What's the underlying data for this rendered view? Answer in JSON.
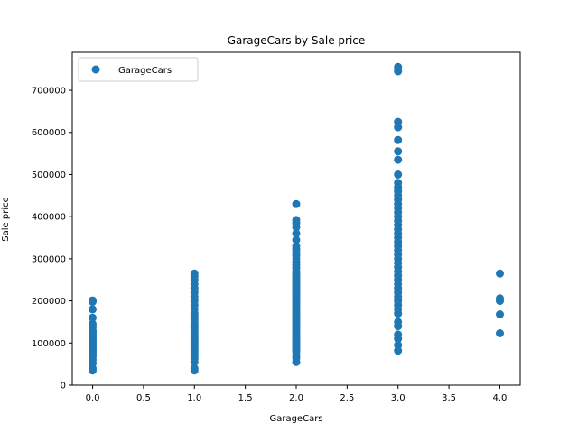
{
  "chart_data": {
    "type": "scatter",
    "title": "GarageCars by Sale price",
    "xlabel": "GarageCars",
    "ylabel": "Sale price",
    "xlim": [
      -0.2,
      4.2
    ],
    "ylim": [
      0,
      790000
    ],
    "x_ticks": [
      0.0,
      0.5,
      1.0,
      1.5,
      2.0,
      2.5,
      3.0,
      3.5,
      4.0
    ],
    "x_tick_labels": [
      "0.0",
      "0.5",
      "1.0",
      "1.5",
      "2.0",
      "2.5",
      "3.0",
      "3.5",
      "4.0"
    ],
    "y_ticks": [
      0,
      100000,
      200000,
      300000,
      400000,
      500000,
      600000,
      700000
    ],
    "y_tick_labels": [
      "0",
      "100000",
      "200000",
      "300000",
      "400000",
      "500000",
      "600000",
      "700000"
    ],
    "grid": false,
    "legend_position": "top-left",
    "color": "#1f77b4",
    "series": [
      {
        "name": "GarageCars",
        "points": [
          {
            "x": 0,
            "y": 35000
          },
          {
            "x": 0,
            "y": 40000
          },
          {
            "x": 0,
            "y": 52000
          },
          {
            "x": 0,
            "y": 60000
          },
          {
            "x": 0,
            "y": 68000
          },
          {
            "x": 0,
            "y": 75000
          },
          {
            "x": 0,
            "y": 80000
          },
          {
            "x": 0,
            "y": 85000
          },
          {
            "x": 0,
            "y": 90000
          },
          {
            "x": 0,
            "y": 95000
          },
          {
            "x": 0,
            "y": 100000
          },
          {
            "x": 0,
            "y": 105000
          },
          {
            "x": 0,
            "y": 110000
          },
          {
            "x": 0,
            "y": 115000
          },
          {
            "x": 0,
            "y": 120000
          },
          {
            "x": 0,
            "y": 125000
          },
          {
            "x": 0,
            "y": 130000
          },
          {
            "x": 0,
            "y": 138000
          },
          {
            "x": 0,
            "y": 145000
          },
          {
            "x": 0,
            "y": 160000
          },
          {
            "x": 0,
            "y": 180000
          },
          {
            "x": 0,
            "y": 198000
          },
          {
            "x": 0,
            "y": 201000
          },
          {
            "x": 1,
            "y": 35000
          },
          {
            "x": 1,
            "y": 40000
          },
          {
            "x": 1,
            "y": 55000
          },
          {
            "x": 1,
            "y": 62000
          },
          {
            "x": 1,
            "y": 68000
          },
          {
            "x": 1,
            "y": 75000
          },
          {
            "x": 1,
            "y": 80000
          },
          {
            "x": 1,
            "y": 85000
          },
          {
            "x": 1,
            "y": 90000
          },
          {
            "x": 1,
            "y": 95000
          },
          {
            "x": 1,
            "y": 100000
          },
          {
            "x": 1,
            "y": 105000
          },
          {
            "x": 1,
            "y": 110000
          },
          {
            "x": 1,
            "y": 115000
          },
          {
            "x": 1,
            "y": 120000
          },
          {
            "x": 1,
            "y": 125000
          },
          {
            "x": 1,
            "y": 130000
          },
          {
            "x": 1,
            "y": 135000
          },
          {
            "x": 1,
            "y": 140000
          },
          {
            "x": 1,
            "y": 145000
          },
          {
            "x": 1,
            "y": 150000
          },
          {
            "x": 1,
            "y": 155000
          },
          {
            "x": 1,
            "y": 160000
          },
          {
            "x": 1,
            "y": 165000
          },
          {
            "x": 1,
            "y": 170000
          },
          {
            "x": 1,
            "y": 180000
          },
          {
            "x": 1,
            "y": 190000
          },
          {
            "x": 1,
            "y": 200000
          },
          {
            "x": 1,
            "y": 210000
          },
          {
            "x": 1,
            "y": 220000
          },
          {
            "x": 1,
            "y": 230000
          },
          {
            "x": 1,
            "y": 240000
          },
          {
            "x": 1,
            "y": 250000
          },
          {
            "x": 1,
            "y": 258000
          },
          {
            "x": 1,
            "y": 265000
          },
          {
            "x": 2,
            "y": 55000
          },
          {
            "x": 2,
            "y": 65000
          },
          {
            "x": 2,
            "y": 72000
          },
          {
            "x": 2,
            "y": 80000
          },
          {
            "x": 2,
            "y": 85000
          },
          {
            "x": 2,
            "y": 90000
          },
          {
            "x": 2,
            "y": 95000
          },
          {
            "x": 2,
            "y": 100000
          },
          {
            "x": 2,
            "y": 105000
          },
          {
            "x": 2,
            "y": 110000
          },
          {
            "x": 2,
            "y": 115000
          },
          {
            "x": 2,
            "y": 120000
          },
          {
            "x": 2,
            "y": 125000
          },
          {
            "x": 2,
            "y": 130000
          },
          {
            "x": 2,
            "y": 135000
          },
          {
            "x": 2,
            "y": 140000
          },
          {
            "x": 2,
            "y": 145000
          },
          {
            "x": 2,
            "y": 150000
          },
          {
            "x": 2,
            "y": 155000
          },
          {
            "x": 2,
            "y": 160000
          },
          {
            "x": 2,
            "y": 165000
          },
          {
            "x": 2,
            "y": 170000
          },
          {
            "x": 2,
            "y": 175000
          },
          {
            "x": 2,
            "y": 180000
          },
          {
            "x": 2,
            "y": 185000
          },
          {
            "x": 2,
            "y": 190000
          },
          {
            "x": 2,
            "y": 195000
          },
          {
            "x": 2,
            "y": 200000
          },
          {
            "x": 2,
            "y": 205000
          },
          {
            "x": 2,
            "y": 210000
          },
          {
            "x": 2,
            "y": 215000
          },
          {
            "x": 2,
            "y": 220000
          },
          {
            "x": 2,
            "y": 225000
          },
          {
            "x": 2,
            "y": 230000
          },
          {
            "x": 2,
            "y": 235000
          },
          {
            "x": 2,
            "y": 240000
          },
          {
            "x": 2,
            "y": 245000
          },
          {
            "x": 2,
            "y": 250000
          },
          {
            "x": 2,
            "y": 255000
          },
          {
            "x": 2,
            "y": 260000
          },
          {
            "x": 2,
            "y": 265000
          },
          {
            "x": 2,
            "y": 270000
          },
          {
            "x": 2,
            "y": 278000
          },
          {
            "x": 2,
            "y": 285000
          },
          {
            "x": 2,
            "y": 292000
          },
          {
            "x": 2,
            "y": 300000
          },
          {
            "x": 2,
            "y": 308000
          },
          {
            "x": 2,
            "y": 315000
          },
          {
            "x": 2,
            "y": 322000
          },
          {
            "x": 2,
            "y": 330000
          },
          {
            "x": 2,
            "y": 345000
          },
          {
            "x": 2,
            "y": 360000
          },
          {
            "x": 2,
            "y": 375000
          },
          {
            "x": 2,
            "y": 385000
          },
          {
            "x": 2,
            "y": 392000
          },
          {
            "x": 2,
            "y": 430000
          },
          {
            "x": 3,
            "y": 82000
          },
          {
            "x": 3,
            "y": 95000
          },
          {
            "x": 3,
            "y": 110000
          },
          {
            "x": 3,
            "y": 120000
          },
          {
            "x": 3,
            "y": 140000
          },
          {
            "x": 3,
            "y": 150000
          },
          {
            "x": 3,
            "y": 170000
          },
          {
            "x": 3,
            "y": 180000
          },
          {
            "x": 3,
            "y": 190000
          },
          {
            "x": 3,
            "y": 200000
          },
          {
            "x": 3,
            "y": 210000
          },
          {
            "x": 3,
            "y": 220000
          },
          {
            "x": 3,
            "y": 230000
          },
          {
            "x": 3,
            "y": 240000
          },
          {
            "x": 3,
            "y": 250000
          },
          {
            "x": 3,
            "y": 260000
          },
          {
            "x": 3,
            "y": 270000
          },
          {
            "x": 3,
            "y": 280000
          },
          {
            "x": 3,
            "y": 290000
          },
          {
            "x": 3,
            "y": 300000
          },
          {
            "x": 3,
            "y": 310000
          },
          {
            "x": 3,
            "y": 320000
          },
          {
            "x": 3,
            "y": 330000
          },
          {
            "x": 3,
            "y": 340000
          },
          {
            "x": 3,
            "y": 350000
          },
          {
            "x": 3,
            "y": 360000
          },
          {
            "x": 3,
            "y": 370000
          },
          {
            "x": 3,
            "y": 380000
          },
          {
            "x": 3,
            "y": 390000
          },
          {
            "x": 3,
            "y": 400000
          },
          {
            "x": 3,
            "y": 410000
          },
          {
            "x": 3,
            "y": 420000
          },
          {
            "x": 3,
            "y": 430000
          },
          {
            "x": 3,
            "y": 440000
          },
          {
            "x": 3,
            "y": 450000
          },
          {
            "x": 3,
            "y": 460000
          },
          {
            "x": 3,
            "y": 470000
          },
          {
            "x": 3,
            "y": 480000
          },
          {
            "x": 3,
            "y": 500000
          },
          {
            "x": 3,
            "y": 535000
          },
          {
            "x": 3,
            "y": 555000
          },
          {
            "x": 3,
            "y": 582000
          },
          {
            "x": 3,
            "y": 612000
          },
          {
            "x": 3,
            "y": 625000
          },
          {
            "x": 3,
            "y": 745000
          },
          {
            "x": 3,
            "y": 755000
          },
          {
            "x": 4,
            "y": 123000
          },
          {
            "x": 4,
            "y": 168000
          },
          {
            "x": 4,
            "y": 200000
          },
          {
            "x": 4,
            "y": 206000
          },
          {
            "x": 4,
            "y": 265000
          }
        ]
      }
    ]
  }
}
